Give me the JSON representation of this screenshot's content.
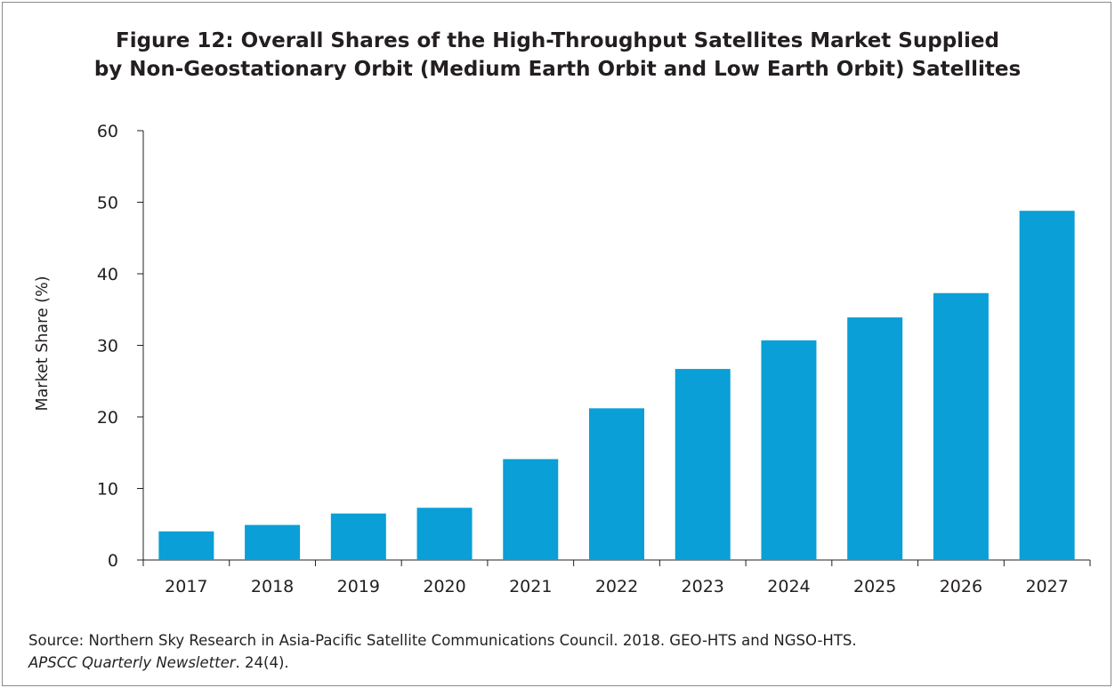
{
  "chart_data": {
    "type": "bar",
    "title_lines": [
      "Figure 12: Overall Shares of the High-Throughput Satellites Market Supplied",
      "by Non-Geostationary Orbit (Medium Earth Orbit and Low Earth Orbit) Satellites"
    ],
    "xlabel": "",
    "ylabel": "Market Share (%)",
    "categories": [
      "2017",
      "2018",
      "2019",
      "2020",
      "2021",
      "2022",
      "2023",
      "2024",
      "2025",
      "2026",
      "2027"
    ],
    "values": [
      4.0,
      4.9,
      6.5,
      7.3,
      14.1,
      21.2,
      26.7,
      30.7,
      33.9,
      37.3,
      48.8
    ],
    "ylim": [
      0,
      60
    ],
    "yticks": [
      "0",
      "10",
      "20",
      "30",
      "40",
      "50",
      "60"
    ],
    "grid": false,
    "legend": "none",
    "bar_color": "#0a9fd6"
  },
  "source": {
    "line1": "Source: Northern Sky Research in Asia-Pacific Satellite Communications Council. 2018. GEO-HTS and NGSO-HTS.",
    "line2_italic": "APSCC Quarterly Newsletter",
    "line2_rest": ". 24(4)."
  }
}
